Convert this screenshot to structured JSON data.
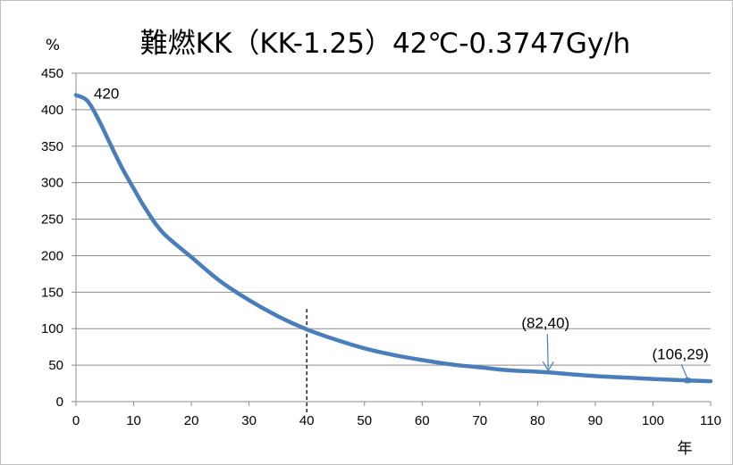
{
  "chart_data": {
    "type": "line",
    "title": "難燃KK（KK-1.25）42℃-0.3747Gy/h",
    "ylabel": "%",
    "xlabel": "年",
    "xlim": [
      0,
      110
    ],
    "ylim": [
      0,
      450
    ],
    "xticks": [
      "0",
      "10",
      "20",
      "30",
      "40",
      "50",
      "60",
      "70",
      "80",
      "90",
      "100",
      "110"
    ],
    "yticks": [
      "0",
      "50",
      "100",
      "150",
      "200",
      "250",
      "300",
      "350",
      "400",
      "450"
    ],
    "grid": true,
    "series": [
      {
        "color": "#4a7ebb",
        "x": [
          0,
          2,
          4,
          6,
          8,
          10,
          12,
          15,
          20,
          25,
          30,
          35,
          40,
          45,
          50,
          55,
          60,
          65,
          70,
          75,
          80,
          82,
          85,
          90,
          95,
          100,
          106,
          110
        ],
        "y": [
          420,
          412,
          385,
          352,
          320,
          292,
          265,
          232,
          198,
          165,
          139,
          117,
          99,
          85,
          73,
          64,
          57,
          51,
          47,
          43,
          41,
          40,
          38,
          35,
          33,
          31,
          29,
          28
        ]
      }
    ],
    "vline_x": 40,
    "annotations": [
      {
        "text": "420",
        "x": 0,
        "y": 420
      },
      {
        "text": "(82,40)",
        "x": 82,
        "y": 40
      },
      {
        "text": "(106,29)",
        "x": 106,
        "y": 29
      }
    ]
  }
}
